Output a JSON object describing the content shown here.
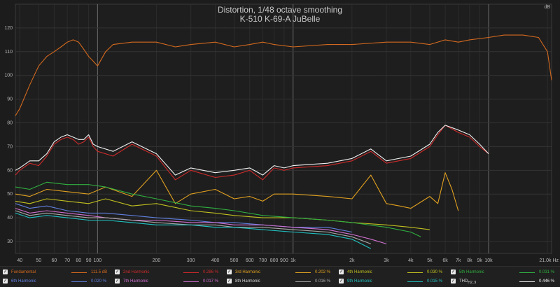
{
  "chart_data": {
    "type": "line",
    "title": "Distortion, 1/48 octave smoothing",
    "subtitle": "K-510 K-69-A JuBelle",
    "ylabel": "dB",
    "xlabel": "",
    "x_scale": "log",
    "xlim": [
      38,
      21000
    ],
    "ylim": [
      25,
      130
    ],
    "grid": true,
    "x_ticks": [
      {
        "v": 40,
        "t": "40"
      },
      {
        "v": 50,
        "t": "50"
      },
      {
        "v": 60,
        "t": "60"
      },
      {
        "v": 70,
        "t": "70"
      },
      {
        "v": 80,
        "t": "80"
      },
      {
        "v": 90,
        "t": "90"
      },
      {
        "v": 100,
        "t": "100"
      },
      {
        "v": 200,
        "t": "200"
      },
      {
        "v": 300,
        "t": "300"
      },
      {
        "v": 400,
        "t": "400"
      },
      {
        "v": 500,
        "t": "500"
      },
      {
        "v": 600,
        "t": "600"
      },
      {
        "v": 700,
        "t": "700"
      },
      {
        "v": 800,
        "t": "800"
      },
      {
        "v": 900,
        "t": "900"
      },
      {
        "v": 1000,
        "t": "1k"
      },
      {
        "v": 2000,
        "t": "2k"
      },
      {
        "v": 3000,
        "t": "3k"
      },
      {
        "v": 4000,
        "t": "4k"
      },
      {
        "v": 5000,
        "t": "5k"
      },
      {
        "v": 6000,
        "t": "6k"
      },
      {
        "v": 7000,
        "t": "7k"
      },
      {
        "v": 8000,
        "t": "8k"
      },
      {
        "v": 9000,
        "t": "9k"
      },
      {
        "v": 10000,
        "t": "10k"
      },
      {
        "v": 21000,
        "t": "21.0k Hz"
      }
    ],
    "y_ticks": [
      30,
      40,
      50,
      60,
      70,
      80,
      90,
      100,
      110,
      120
    ],
    "series": [
      {
        "name": "Fundamental",
        "color": "#d2691e",
        "value": "111.5 dB",
        "x": [
          38,
          40,
          45,
          50,
          55,
          60,
          65,
          70,
          75,
          80,
          85,
          90,
          95,
          100,
          110,
          120,
          150,
          200,
          250,
          300,
          400,
          500,
          600,
          700,
          800,
          1000,
          1500,
          2000,
          3000,
          4000,
          5000,
          6000,
          7000,
          8000,
          10000,
          12000,
          15000,
          18000,
          20000,
          21000
        ],
        "y": [
          83,
          86,
          96,
          104,
          108,
          110,
          112,
          114,
          115,
          114,
          111,
          108,
          106,
          104,
          110,
          113,
          114,
          114,
          112,
          113,
          114,
          112,
          113,
          114,
          113,
          112,
          113,
          113,
          114,
          114,
          113,
          115,
          114,
          115,
          116,
          117,
          117,
          116,
          110,
          98
        ]
      },
      {
        "name": "2nd Harmonic",
        "color": "#cc2a2a",
        "value": "0.286 %",
        "x": [
          38,
          40,
          45,
          50,
          55,
          60,
          65,
          70,
          75,
          80,
          85,
          90,
          95,
          100,
          120,
          150,
          200,
          250,
          300,
          400,
          500,
          600,
          700,
          800,
          900,
          1000,
          1500,
          2000,
          2500,
          3000,
          4000,
          5000,
          5500,
          6000,
          7000,
          8000,
          9000,
          10000
        ],
        "y": [
          58,
          60,
          63,
          62,
          66,
          71,
          73,
          74,
          73,
          71,
          72,
          74,
          70,
          68,
          66,
          71,
          66,
          56,
          60,
          57,
          58,
          60,
          56,
          61,
          60,
          61,
          62,
          64,
          68,
          63,
          65,
          70,
          75,
          79,
          76,
          74,
          70,
          67
        ]
      },
      {
        "name": "3rd Harmonic",
        "color": "#e0a020",
        "value": "0.202 %",
        "x": [
          38,
          45,
          55,
          70,
          90,
          110,
          150,
          200,
          250,
          300,
          400,
          500,
          600,
          700,
          800,
          1000,
          1500,
          2000,
          2500,
          3000,
          3500,
          4000,
          5000,
          5500,
          6000,
          6500,
          7000
        ],
        "y": [
          50,
          49,
          52,
          51,
          50,
          53,
          49,
          60,
          46,
          50,
          52,
          48,
          49,
          47,
          50,
          50,
          49,
          48,
          58,
          46,
          45,
          44,
          49,
          46,
          59,
          52,
          43
        ]
      },
      {
        "name": "4th Harmonic",
        "color": "#c0c020",
        "value": "0.030 %",
        "x": [
          38,
          45,
          55,
          70,
          90,
          110,
          150,
          200,
          300,
          400,
          500,
          700,
          1000,
          1500,
          2000,
          3000,
          4000,
          5000
        ],
        "y": [
          47,
          46,
          48,
          47,
          46,
          48,
          45,
          46,
          43,
          42,
          41,
          40,
          40,
          39,
          38,
          37,
          36,
          35
        ]
      },
      {
        "name": "5th Harmonic",
        "color": "#30b040",
        "value": "0.031 %",
        "x": [
          38,
          45,
          55,
          70,
          90,
          110,
          150,
          200,
          300,
          400,
          500,
          700,
          1000,
          1500,
          2000,
          3000,
          4000,
          4500
        ],
        "y": [
          53,
          52,
          55,
          54,
          54,
          53,
          50,
          48,
          45,
          44,
          43,
          41,
          40,
          39,
          38,
          36,
          34,
          32
        ]
      },
      {
        "name": "6th Harmonic",
        "color": "#6080e0",
        "value": "0.020 %",
        "x": [
          38,
          45,
          55,
          70,
          90,
          110,
          150,
          200,
          300,
          400,
          500,
          700,
          1000,
          1500,
          2000
        ],
        "y": [
          46,
          44,
          45,
          43,
          42,
          42,
          41,
          40,
          39,
          38,
          38,
          37,
          36,
          36,
          34
        ]
      },
      {
        "name": "7th Harmonic",
        "color": "#d070d0",
        "value": "0.017 %",
        "x": [
          38,
          45,
          55,
          70,
          90,
          110,
          150,
          200,
          300,
          400,
          500,
          700,
          1000,
          1500,
          2000,
          2500,
          3000
        ],
        "y": [
          44,
          42,
          43,
          42,
          41,
          40,
          39,
          39,
          38,
          38,
          37,
          37,
          36,
          35,
          33,
          31,
          29
        ]
      },
      {
        "name": "8th Harmonic",
        "color": "#a8a8a8",
        "value": "0.016 %",
        "x": [
          38,
          45,
          55,
          70,
          90,
          110,
          150,
          200,
          300,
          400,
          500,
          700,
          1000,
          1500,
          2000,
          2500
        ],
        "y": [
          43,
          41,
          42,
          41,
          40,
          40,
          39,
          38,
          37,
          37,
          36,
          36,
          35,
          34,
          32,
          29
        ]
      },
      {
        "name": "9th Harmonic",
        "color": "#20c0c0",
        "value": "0.015 %",
        "x": [
          38,
          45,
          55,
          70,
          90,
          110,
          150,
          200,
          300,
          400,
          500,
          700,
          1000,
          1500,
          2000,
          2500
        ],
        "y": [
          42,
          40,
          41,
          40,
          39,
          39,
          38,
          37,
          37,
          36,
          36,
          35,
          34,
          33,
          31,
          27
        ]
      },
      {
        "name": "THD",
        "subscript": "H2..9",
        "color": "#f0f0f0",
        "value": "0.446 %",
        "x": [
          38,
          40,
          45,
          50,
          55,
          60,
          65,
          70,
          75,
          80,
          85,
          90,
          95,
          100,
          120,
          150,
          200,
          250,
          300,
          400,
          500,
          600,
          700,
          800,
          900,
          1000,
          1500,
          2000,
          2500,
          3000,
          4000,
          5000,
          5500,
          6000,
          7000,
          8000,
          9000,
          10000
        ],
        "y": [
          60,
          61,
          64,
          64,
          67,
          72,
          74,
          75,
          74,
          73,
          73,
          75,
          71,
          70,
          68,
          72,
          67,
          58,
          61,
          59,
          60,
          61,
          58,
          62,
          61,
          62,
          63,
          65,
          69,
          64,
          66,
          71,
          76,
          79,
          77,
          75,
          71,
          67
        ]
      }
    ]
  }
}
